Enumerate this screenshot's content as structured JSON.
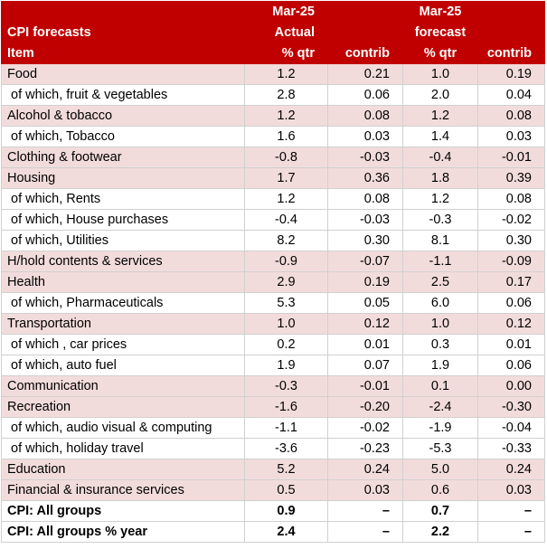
{
  "header": {
    "row1": [
      "",
      "Mar-25",
      "",
      "Mar-25",
      ""
    ],
    "row2": [
      "CPI forecasts",
      "Actual",
      "",
      "forecast",
      ""
    ],
    "row3": [
      "Item",
      "% qtr",
      "contrib",
      "% qtr",
      "contrib"
    ]
  },
  "rows": [
    {
      "type": "main",
      "item": "Food",
      "actual": "1.2",
      "actual_contrib": "0.21",
      "forecast": "1.0",
      "forecast_contrib": "0.19"
    },
    {
      "type": "sub",
      "item": "of which, fruit & vegetables",
      "actual": "2.8",
      "actual_contrib": "0.06",
      "forecast": "2.0",
      "forecast_contrib": "0.04"
    },
    {
      "type": "main",
      "item": "Alcohol & tobacco",
      "actual": "1.2",
      "actual_contrib": "0.08",
      "forecast": "1.2",
      "forecast_contrib": "0.08"
    },
    {
      "type": "sub",
      "item": "of which, Tobacco",
      "actual": "1.6",
      "actual_contrib": "0.03",
      "forecast": "1.4",
      "forecast_contrib": "0.03"
    },
    {
      "type": "main",
      "item": "Clothing & footwear",
      "actual": "-0.8",
      "actual_contrib": "-0.03",
      "forecast": "-0.4",
      "forecast_contrib": "-0.01"
    },
    {
      "type": "main",
      "item": "Housing",
      "actual": "1.7",
      "actual_contrib": "0.36",
      "forecast": "1.8",
      "forecast_contrib": "0.39"
    },
    {
      "type": "sub",
      "item": "of which, Rents",
      "actual": "1.2",
      "actual_contrib": "0.08",
      "forecast": "1.2",
      "forecast_contrib": "0.08"
    },
    {
      "type": "sub",
      "item": "of which, House purchases",
      "actual": "-0.4",
      "actual_contrib": "-0.03",
      "forecast": "-0.3",
      "forecast_contrib": "-0.02"
    },
    {
      "type": "sub",
      "item": "of which, Utilities",
      "actual": "8.2",
      "actual_contrib": "0.30",
      "forecast": "8.1",
      "forecast_contrib": "0.30"
    },
    {
      "type": "main",
      "item": "H/hold contents & services",
      "actual": "-0.9",
      "actual_contrib": "-0.07",
      "forecast": "-1.1",
      "forecast_contrib": "-0.09"
    },
    {
      "type": "main",
      "item": "Health",
      "actual": "2.9",
      "actual_contrib": "0.19",
      "forecast": "2.5",
      "forecast_contrib": "0.17"
    },
    {
      "type": "sub",
      "item": "of which, Pharmaceuticals",
      "actual": "5.3",
      "actual_contrib": "0.05",
      "forecast": "6.0",
      "forecast_contrib": "0.06"
    },
    {
      "type": "main",
      "item": "Transportation",
      "actual": "1.0",
      "actual_contrib": "0.12",
      "forecast": "1.0",
      "forecast_contrib": "0.12"
    },
    {
      "type": "sub",
      "item": "of which , car prices",
      "actual": "0.2",
      "actual_contrib": "0.01",
      "forecast": "0.3",
      "forecast_contrib": "0.01"
    },
    {
      "type": "sub",
      "item": "of which, auto fuel",
      "actual": "1.9",
      "actual_contrib": "0.07",
      "forecast": "1.9",
      "forecast_contrib": "0.06"
    },
    {
      "type": "main",
      "item": "Communication",
      "actual": "-0.3",
      "actual_contrib": "-0.01",
      "forecast": "0.1",
      "forecast_contrib": "0.00"
    },
    {
      "type": "main",
      "item": "Recreation",
      "actual": "-1.6",
      "actual_contrib": "-0.20",
      "forecast": "-2.4",
      "forecast_contrib": "-0.30"
    },
    {
      "type": "sub",
      "item": "of which, audio visual & computing",
      "actual": "-1.1",
      "actual_contrib": "-0.02",
      "forecast": "-1.9",
      "forecast_contrib": "-0.04"
    },
    {
      "type": "sub",
      "item": "of which, holiday travel",
      "actual": "-3.6",
      "actual_contrib": "-0.23",
      "forecast": "-5.3",
      "forecast_contrib": "-0.33"
    },
    {
      "type": "main",
      "item": "Education",
      "actual": "5.2",
      "actual_contrib": "0.24",
      "forecast": "5.0",
      "forecast_contrib": "0.24"
    },
    {
      "type": "main",
      "item": "Financial & insurance services",
      "actual": "0.5",
      "actual_contrib": "0.03",
      "forecast": "0.6",
      "forecast_contrib": "0.03"
    },
    {
      "type": "total",
      "item": "CPI: All groups",
      "actual": "0.9",
      "actual_contrib": "–",
      "forecast": "0.7",
      "forecast_contrib": "–"
    },
    {
      "type": "total",
      "item": "CPI: All groups % year",
      "actual": "2.4",
      "actual_contrib": "–",
      "forecast": "2.2",
      "forecast_contrib": "–"
    }
  ]
}
